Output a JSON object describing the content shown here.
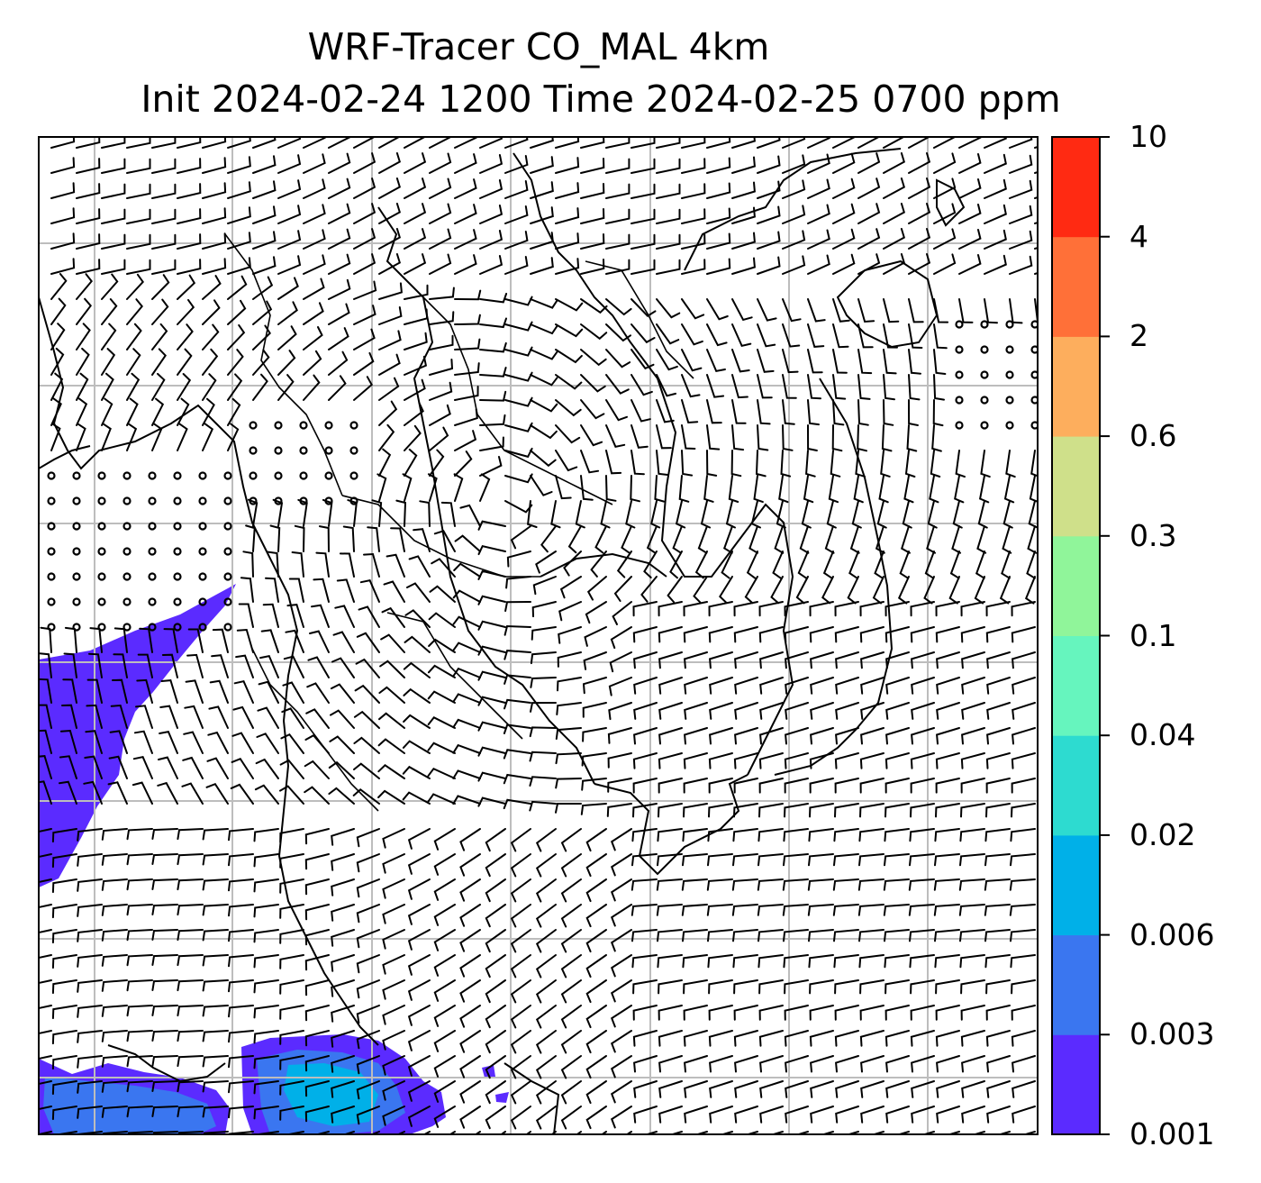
{
  "title": {
    "line1": "WRF-Tracer CO_MAL 4km",
    "line2": "Init 2024-02-24 1200 Time 2024-02-25 0700 ppm"
  },
  "map": {
    "features": [
      "coastlines",
      "country-borders",
      "lat-lon-gridlines",
      "wind-barbs",
      "tracer-concentration-shading"
    ],
    "gridline_color": "#bdbdbd",
    "barb_color": "#000000",
    "plume_main_color": "#5b2bff"
  },
  "colorbar": {
    "levels": [
      "0.001",
      "0.003",
      "0.006",
      "0.02",
      "0.04",
      "0.1",
      "0.3",
      "0.6",
      "2",
      "4",
      "10"
    ],
    "colors": [
      "#5b2bff",
      "#3a76f0",
      "#00b0e8",
      "#2ddbd0",
      "#66f5be",
      "#90f59a",
      "#cfe08a",
      "#fdae5d",
      "#ff7038",
      "#ff2a12"
    ]
  }
}
